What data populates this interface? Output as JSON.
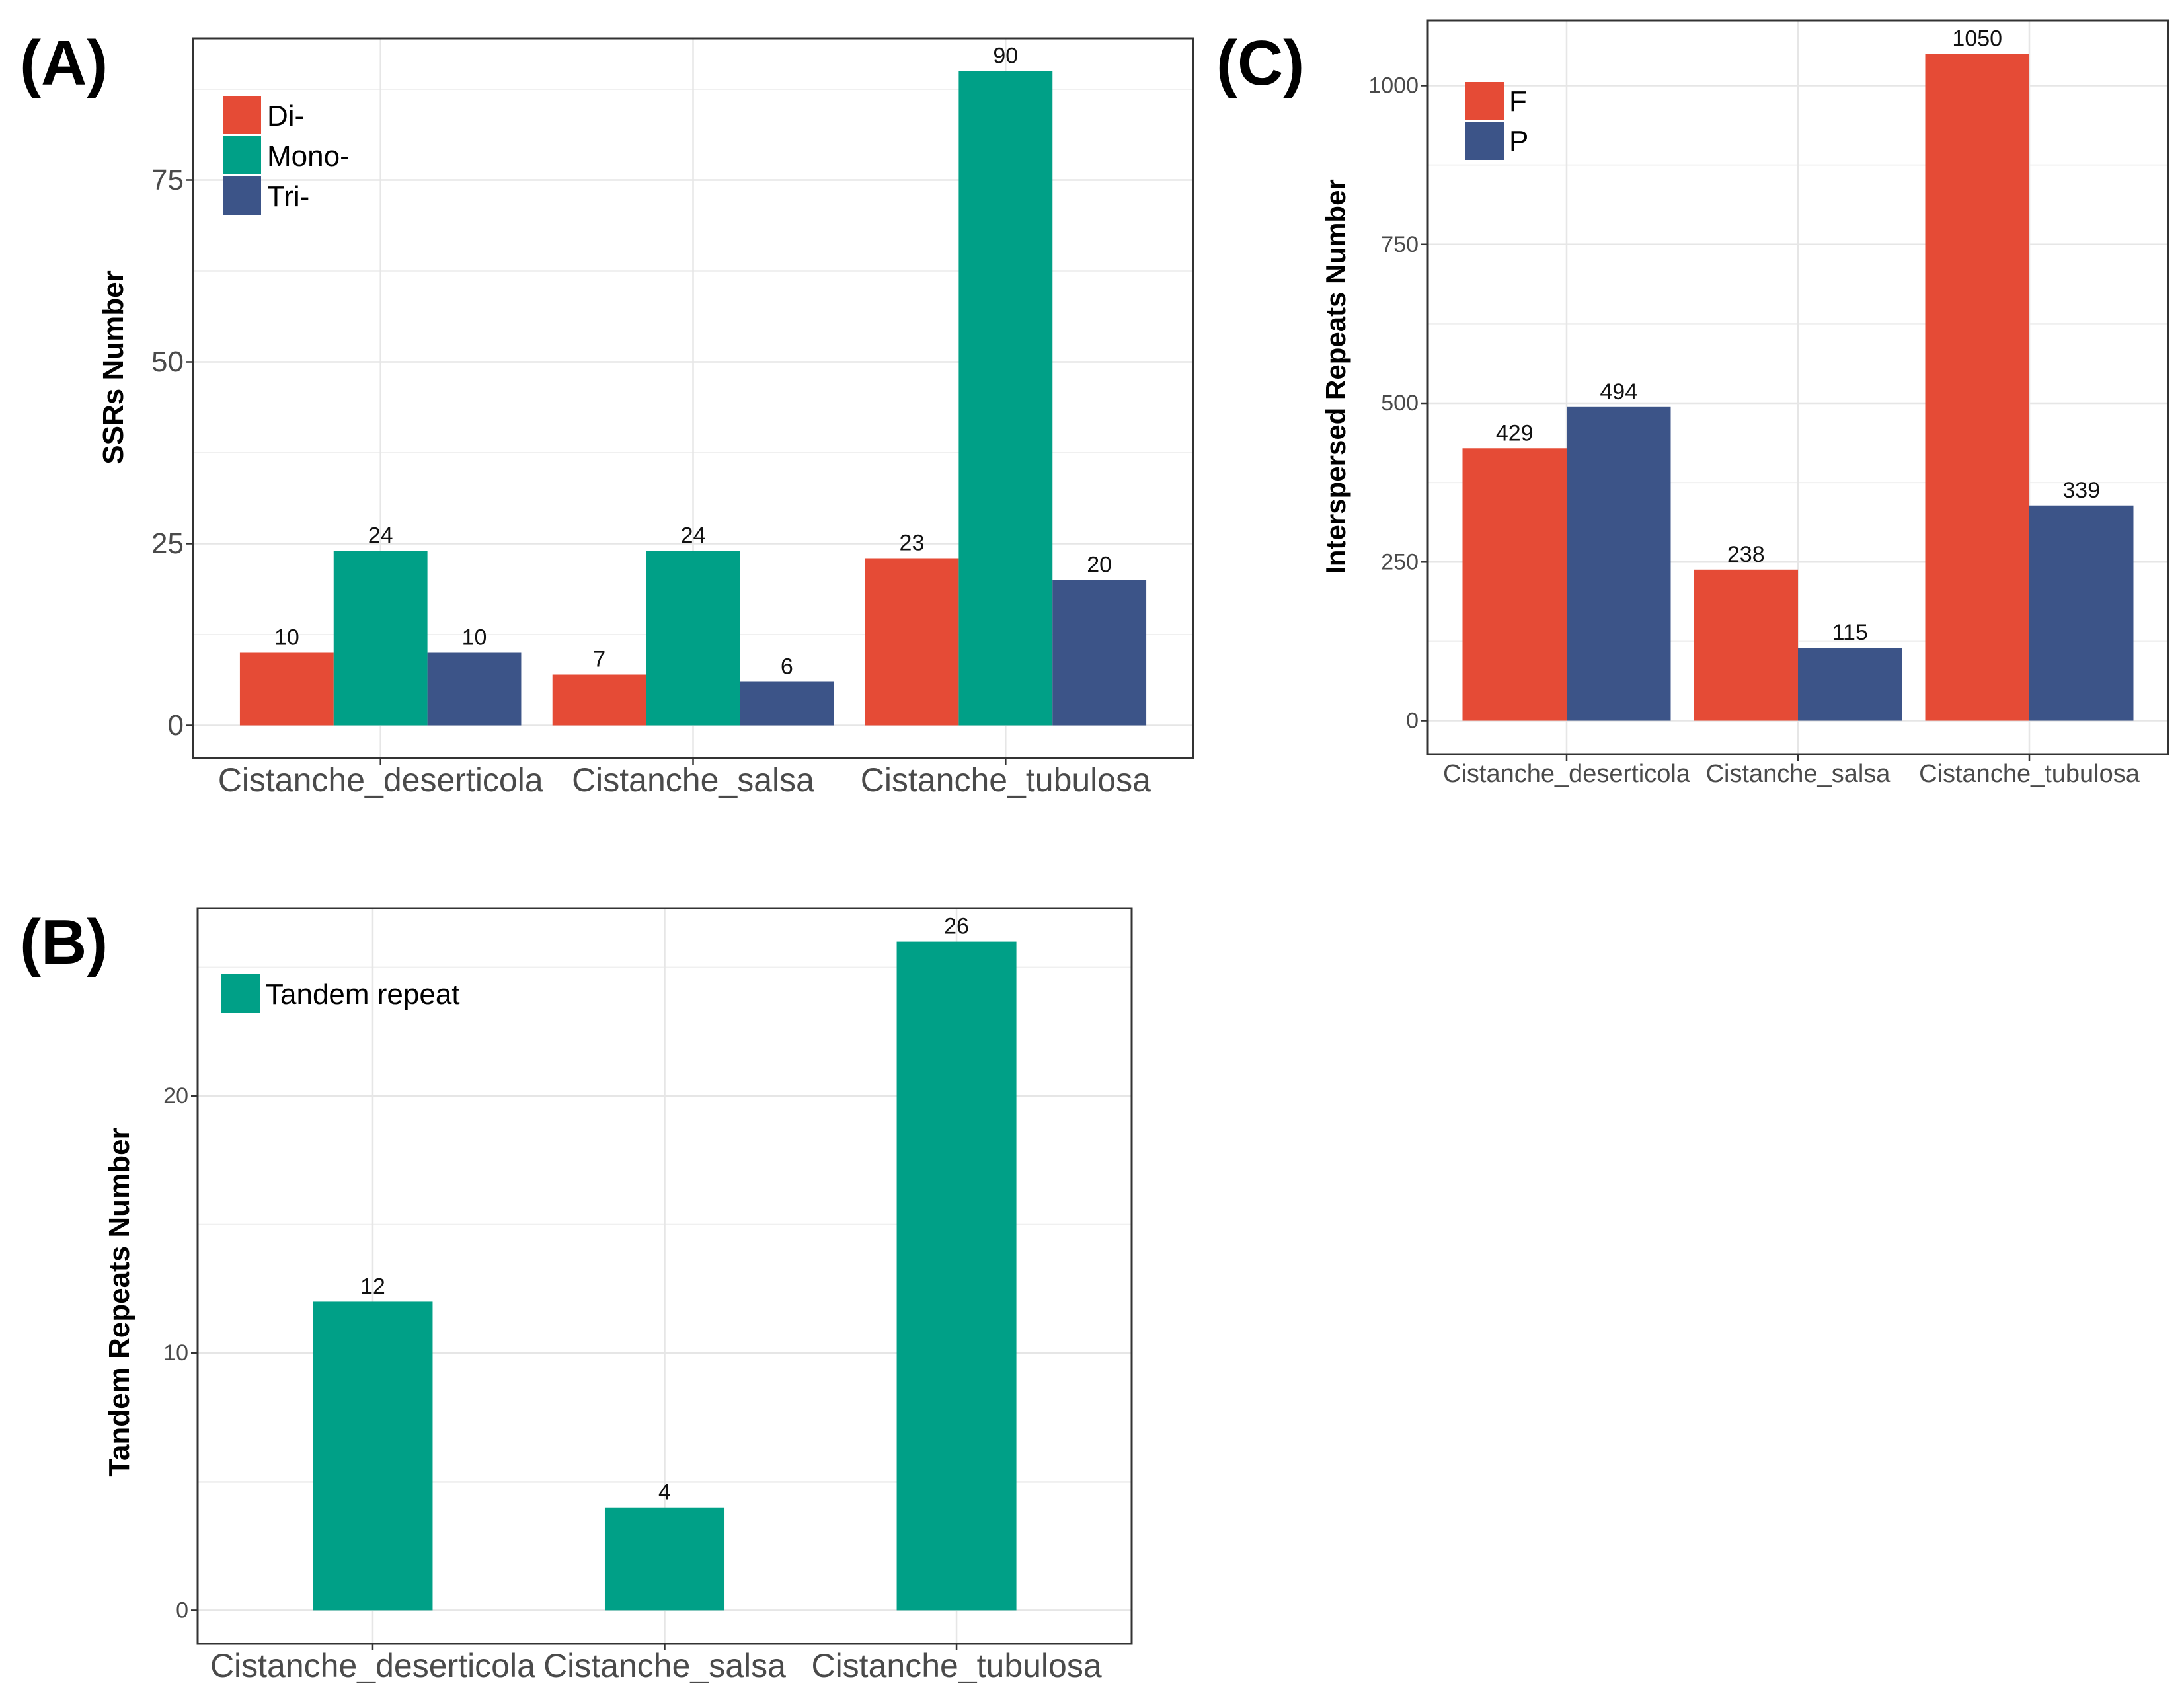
{
  "colors": {
    "di": "#E54B36",
    "mono": "#00A087",
    "tri": "#3C5488",
    "F": "#E54B36",
    "P": "#3C5488",
    "tandem": "#00A087",
    "grid": "#E6E6E6",
    "frame": "#333333"
  },
  "chart_data": [
    {
      "panel": "(A)",
      "type": "bar",
      "categories": [
        "Cistanche_deserticola",
        "Cistanche_salsa",
        "Cistanche_tubulosa"
      ],
      "series": [
        {
          "name": "Di-",
          "values": [
            10,
            7,
            23
          ]
        },
        {
          "name": "Mono-",
          "values": [
            24,
            24,
            90
          ]
        },
        {
          "name": "Tri-",
          "values": [
            10,
            6,
            20
          ]
        }
      ],
      "xlabel": "",
      "ylabel": "SSRs Number",
      "ylim": [
        -4.5,
        94.5
      ],
      "yticks": [
        "0",
        "25",
        "50",
        "75"
      ],
      "legend": "top-left"
    },
    {
      "panel": "(B)",
      "type": "bar",
      "categories": [
        "Cistanche_deserticola",
        "Cistanche_salsa",
        "Cistanche_tubulosa"
      ],
      "series": [
        {
          "name": "Tandem repeat",
          "values": [
            12,
            4,
            26
          ]
        }
      ],
      "xlabel": "",
      "ylabel": "Tandem Repeats Number",
      "ylim": [
        -1.3,
        27.3
      ],
      "yticks": [
        "0",
        "10",
        "20"
      ],
      "legend": "top-left"
    },
    {
      "panel": "(C)",
      "type": "bar",
      "categories": [
        "Cistanche_deserticola",
        "Cistanche_salsa",
        "Cistanche_tubulosa"
      ],
      "series": [
        {
          "name": "F",
          "values": [
            429,
            238,
            1050
          ]
        },
        {
          "name": "P",
          "values": [
            494,
            115,
            339
          ]
        }
      ],
      "xlabel": "",
      "ylabel": "Interspersed Repeats Number",
      "ylim": [
        -52.5,
        1102.5
      ],
      "yticks": [
        "0",
        "250",
        "500",
        "750",
        "1000"
      ],
      "legend": "top-left"
    }
  ]
}
